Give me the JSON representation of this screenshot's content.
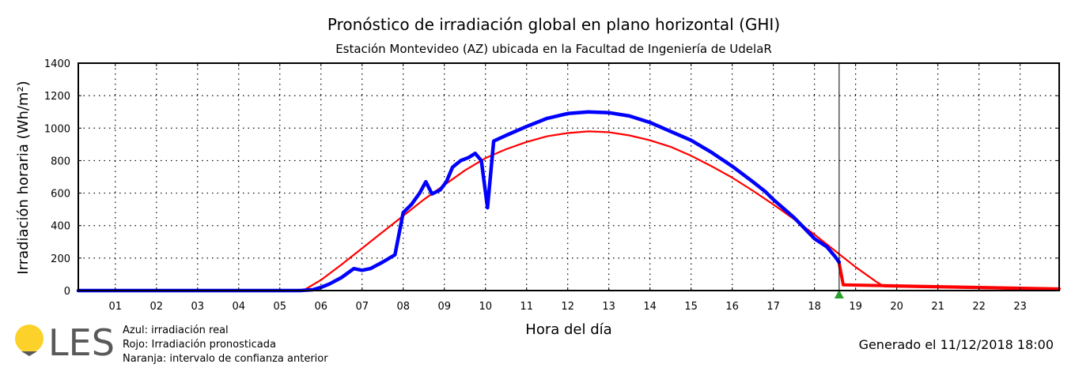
{
  "chart_data": {
    "type": "line",
    "title": "Pronóstico de irradiación global en plano horizontal (GHI)",
    "subtitle": "Estación Montevideo (AZ) ubicada en la Facultad de Ingeniería de UdelaR",
    "xlabel": "Hora del día",
    "ylabel": "Irradiación horaria (Wh/m²)",
    "xlim": [
      0.1,
      23.95
    ],
    "ylim": [
      0,
      1400
    ],
    "x_ticks": [
      {
        "value": 1,
        "label": "01"
      },
      {
        "value": 2,
        "label": "02"
      },
      {
        "value": 3,
        "label": "03"
      },
      {
        "value": 4,
        "label": "04"
      },
      {
        "value": 5,
        "label": "05"
      },
      {
        "value": 6,
        "label": "06"
      },
      {
        "value": 7,
        "label": "07"
      },
      {
        "value": 8,
        "label": "08"
      },
      {
        "value": 9,
        "label": "09"
      },
      {
        "value": 10,
        "label": "10"
      },
      {
        "value": 11,
        "label": "11"
      },
      {
        "value": 12,
        "label": "12"
      },
      {
        "value": 13,
        "label": "13"
      },
      {
        "value": 14,
        "label": "14"
      },
      {
        "value": 15,
        "label": "15"
      },
      {
        "value": 16,
        "label": "16"
      },
      {
        "value": 17,
        "label": "17"
      },
      {
        "value": 18,
        "label": "18"
      },
      {
        "value": 19,
        "label": "19"
      },
      {
        "value": 20,
        "label": "20"
      },
      {
        "value": 21,
        "label": "21"
      },
      {
        "value": 22,
        "label": "22"
      },
      {
        "value": 23,
        "label": "23"
      }
    ],
    "y_ticks": [
      0,
      200,
      400,
      600,
      800,
      1000,
      1200,
      1400
    ],
    "y_tick_labels": [
      "0",
      "200",
      "400",
      "600",
      "800",
      "1000",
      "1200",
      "1400"
    ],
    "grid": true,
    "current_time": 18.6,
    "series": [
      {
        "color": "#ff0000",
        "points": [
          [
            0.1,
            0
          ],
          [
            5.5,
            0
          ],
          [
            5.6,
            5
          ],
          [
            6,
            65
          ],
          [
            6.5,
            160
          ],
          [
            7,
            260
          ],
          [
            7.5,
            360
          ],
          [
            8,
            460
          ],
          [
            8.5,
            560
          ],
          [
            9,
            650
          ],
          [
            9.5,
            740
          ],
          [
            10,
            815
          ],
          [
            10.5,
            870
          ],
          [
            11,
            915
          ],
          [
            11.5,
            950
          ],
          [
            12,
            970
          ],
          [
            12.5,
            980
          ],
          [
            13,
            975
          ],
          [
            13.5,
            955
          ],
          [
            14,
            925
          ],
          [
            14.5,
            885
          ],
          [
            15,
            830
          ],
          [
            15.5,
            765
          ],
          [
            16,
            695
          ],
          [
            16.5,
            615
          ],
          [
            17,
            530
          ],
          [
            17.5,
            440
          ],
          [
            18,
            345
          ],
          [
            18.5,
            245
          ],
          [
            19,
            145
          ],
          [
            19.5,
            55
          ],
          [
            19.7,
            25
          ],
          [
            23.95,
            5
          ]
        ]
      },
      {
        "color": "#ff0000",
        "points": [
          [
            18.6,
            170
          ],
          [
            18.7,
            35
          ],
          [
            23.95,
            10
          ]
        ]
      },
      {
        "color": "#0000ff",
        "points": [
          [
            0.1,
            0
          ],
          [
            5.5,
            0
          ],
          [
            5.8,
            5
          ],
          [
            6,
            20
          ],
          [
            6.2,
            40
          ],
          [
            6.5,
            80
          ],
          [
            6.8,
            135
          ],
          [
            7,
            125
          ],
          [
            7.2,
            135
          ],
          [
            7.5,
            175
          ],
          [
            7.8,
            220
          ],
          [
            8,
            480
          ],
          [
            8.2,
            530
          ],
          [
            8.4,
            600
          ],
          [
            8.55,
            670
          ],
          [
            8.7,
            595
          ],
          [
            8.9,
            620
          ],
          [
            9.05,
            670
          ],
          [
            9.2,
            760
          ],
          [
            9.4,
            800
          ],
          [
            9.6,
            820
          ],
          [
            9.75,
            845
          ],
          [
            9.9,
            800
          ],
          [
            10.05,
            510
          ],
          [
            10.2,
            920
          ],
          [
            10.5,
            955
          ],
          [
            11,
            1010
          ],
          [
            11.5,
            1060
          ],
          [
            12,
            1090
          ],
          [
            12.5,
            1100
          ],
          [
            13,
            1095
          ],
          [
            13.5,
            1075
          ],
          [
            14,
            1035
          ],
          [
            14.5,
            980
          ],
          [
            15,
            925
          ],
          [
            15.5,
            850
          ],
          [
            16,
            765
          ],
          [
            16.5,
            670
          ],
          [
            16.8,
            610
          ],
          [
            17,
            560
          ],
          [
            17.5,
            450
          ],
          [
            18,
            320
          ],
          [
            18.3,
            270
          ],
          [
            18.5,
            210
          ],
          [
            18.6,
            175
          ]
        ]
      }
    ]
  },
  "legend_notes": [
    "Azul: irradiación real",
    "Rojo: Irradiación pronosticada",
    "Naranja: intervalo de confianza anterior"
  ],
  "logo": {
    "text": "LES",
    "sun_color": "#fcd12a",
    "text_color": "#595959"
  },
  "footer": {
    "generated": "Generado el 11/12/2018 18:00"
  },
  "colors": {
    "marker": "#2ca02c"
  }
}
